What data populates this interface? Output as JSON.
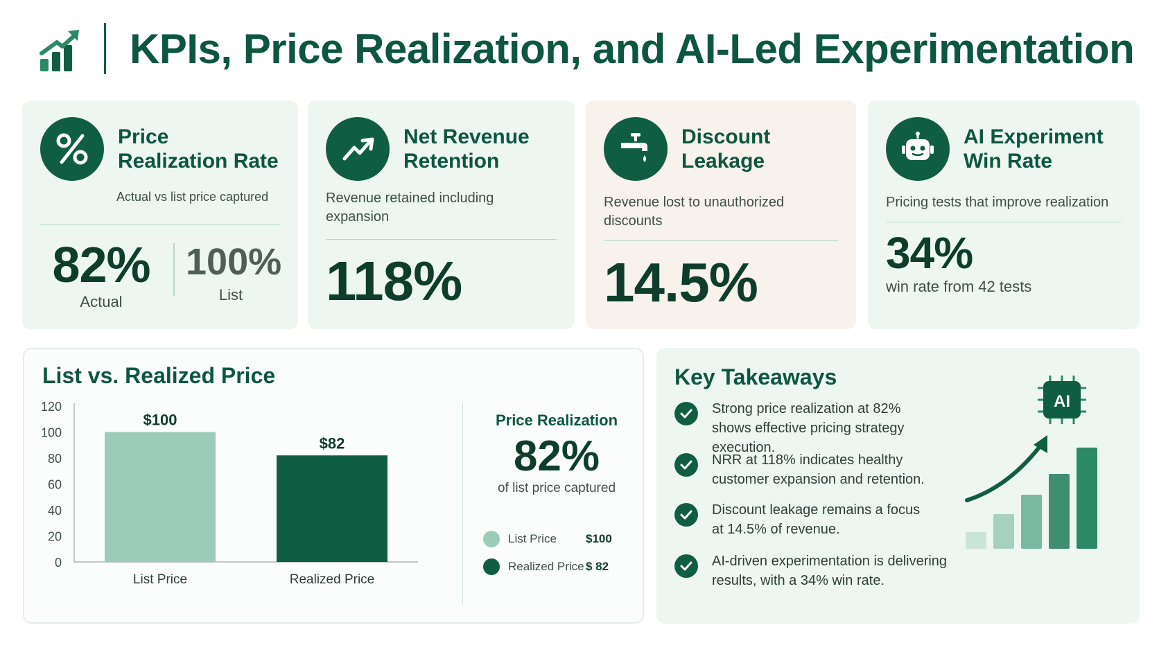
{
  "header": {
    "title": "KPIs, Price Realization, and AI-Led Experimentation"
  },
  "kpis": {
    "price_realization": {
      "title": "Price Realization Rate",
      "desc": "Actual vs list  price captured",
      "actual_value": "82%",
      "actual_label": "Actual",
      "list_value": "100%",
      "list_label": "List"
    },
    "nrr": {
      "title": "Net Revenue Retention",
      "desc": "Revenue retained including expansion",
      "value": "118%"
    },
    "discount": {
      "title": "Discount Leakage",
      "desc": "Revenue lost to unauthorized discounts",
      "value": "14.5%"
    },
    "ai": {
      "title": "AI Experiment Win Rate",
      "desc": "Pricing tests that improve realization",
      "value": "34%",
      "sub": "win rate from 42 tests"
    }
  },
  "chart_data": {
    "type": "bar",
    "title": "List vs. Realized Price",
    "categories": [
      "List Price",
      "Realized Price"
    ],
    "values": [
      100,
      82
    ],
    "data_labels": [
      "$100",
      "$82"
    ],
    "colors": [
      "#9ccbb9",
      "#0f5e44"
    ],
    "ylim": [
      0,
      120
    ],
    "yticks": [
      0,
      20,
      40,
      60,
      80,
      100,
      120
    ],
    "grid": false,
    "xlabel": "",
    "ylabel": ""
  },
  "summary": {
    "title": "Price Realization",
    "value": "82%",
    "sub": "of list price captured",
    "legend": [
      {
        "label": "List Price",
        "value": "$100",
        "color": "#9ccbb9"
      },
      {
        "label": "Realized Price",
        "value": "$ 82",
        "color": "#0f5e44"
      }
    ]
  },
  "takeaways": {
    "title": "Key Takeaways",
    "items": [
      {
        "line1": "Strong price realization at 82%",
        "line2": "shows effective pricing strategy execution."
      },
      {
        "line1": "NRR at 118% indicates healthy",
        "line2": "customer expansion and retention."
      },
      {
        "line1": "Discount leakage remains a focus",
        "line2": "at 14.5% of revenue."
      },
      {
        "line1": "AI-driven experimentation is delivering",
        "line2": "results, with a 34% win rate."
      }
    ],
    "badge": "AI"
  },
  "icons": [
    "growth-chart-icon",
    "percent-icon",
    "trend-up-icon",
    "faucet-icon",
    "robot-icon",
    "check-icon",
    "ai-chip-icon"
  ],
  "colors": {
    "primary": "#0f5e44",
    "light": "#9ccbb9",
    "card": "#eef6f2",
    "peach": "#f8f2ec"
  }
}
